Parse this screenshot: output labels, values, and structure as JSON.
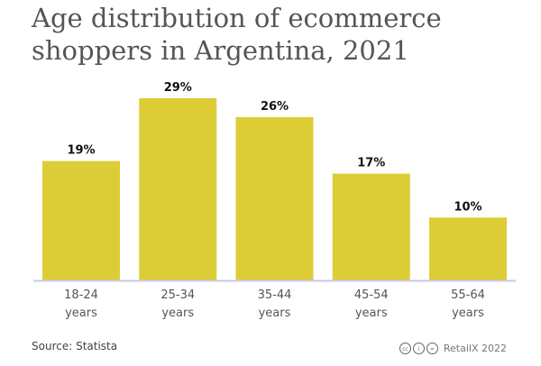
{
  "chart_data": {
    "type": "bar",
    "title": "Age distribution of ecommerce shoppers in Argentina, 2021",
    "categories": [
      [
        "18-24",
        "years"
      ],
      [
        "25-34",
        "years"
      ],
      [
        "35-44",
        "years"
      ],
      [
        "45-54",
        "years"
      ],
      [
        "55-64",
        "years"
      ]
    ],
    "values": [
      19,
      29,
      26,
      17,
      10
    ],
    "labels": [
      "19%",
      "29%",
      "26%",
      "17%",
      "10%"
    ],
    "xlabel": "",
    "ylabel": "",
    "ylim": [
      0,
      29
    ],
    "grid": false,
    "bar_color": "#dccd37",
    "axis_color": "#c5cde6"
  },
  "footer": {
    "source": "Source: Statista",
    "credit": "RetailX 2022",
    "license_icons": [
      "cc",
      "by",
      "nd"
    ]
  }
}
